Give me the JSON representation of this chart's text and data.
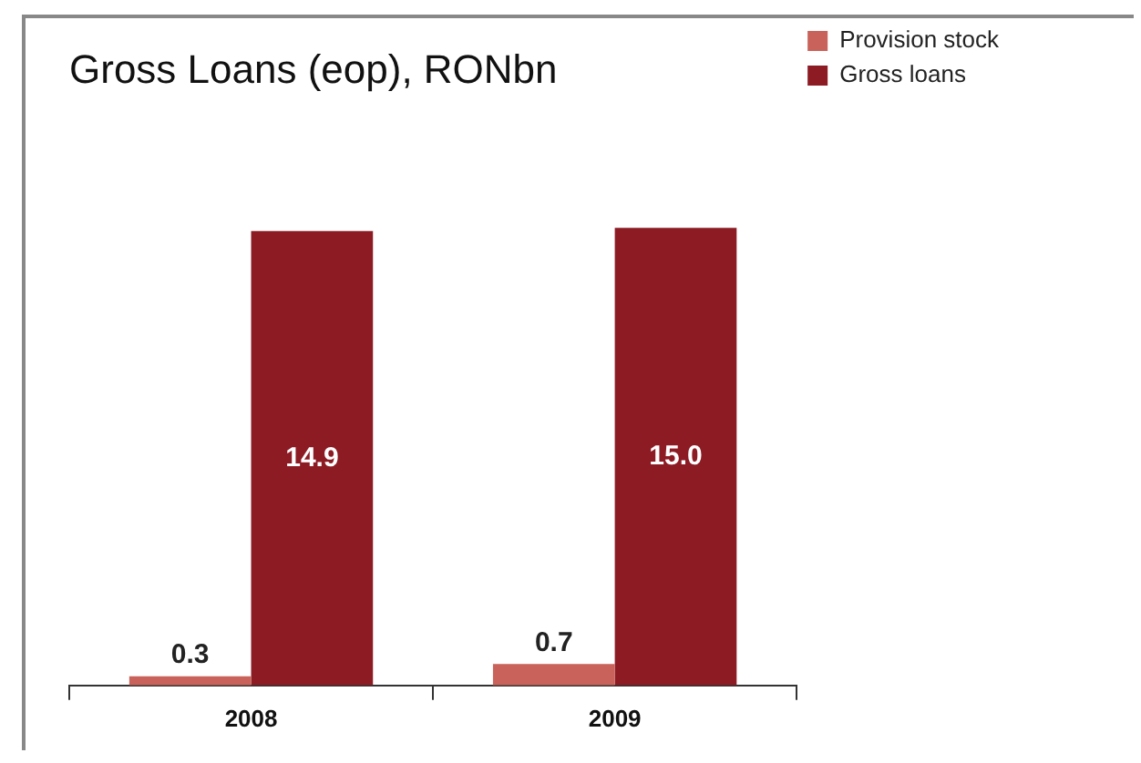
{
  "chart_data": {
    "type": "bar",
    "title": "Gross Loans (eop), RONbn",
    "categories": [
      "2008",
      "2009"
    ],
    "series": [
      {
        "name": "Provision stock",
        "color": "#c9625a",
        "values": [
          0.3,
          0.7
        ],
        "value_labels": [
          "0.3",
          "0.7"
        ]
      },
      {
        "name": "Gross loans",
        "color": "#8c1b24",
        "values": [
          14.9,
          15.0
        ],
        "value_labels": [
          "14.9",
          "15.0"
        ]
      }
    ],
    "legend": "top right"
  }
}
